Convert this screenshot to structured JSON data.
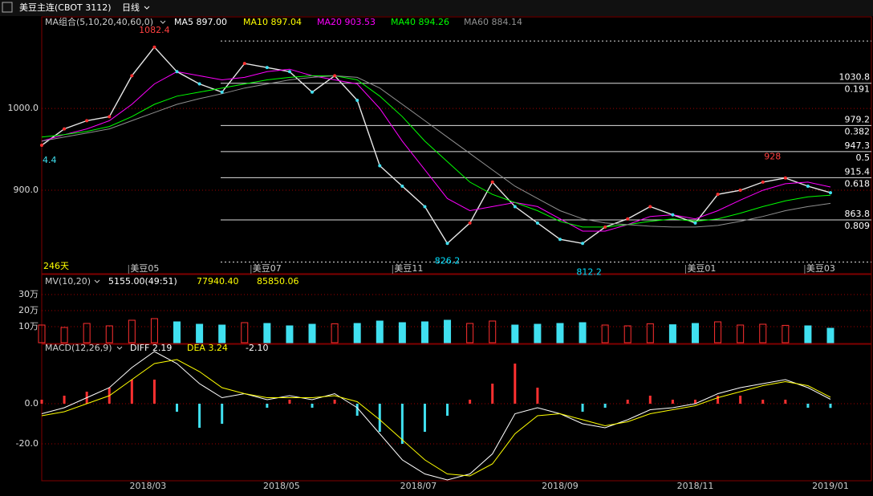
{
  "header": {
    "symbol": "美豆主连(CBOT 3112)",
    "period": "日线"
  },
  "chart_data": [
    {
      "type": "line",
      "legend_title": "MA组合(5,10,20,40,60,0)",
      "legend": [
        {
          "text": "MA5 897.00",
          "color": "#ffffff"
        },
        {
          "text": "MA10 897.04",
          "color": "#ffff00"
        },
        {
          "text": "MA20 903.53",
          "color": "#ff00ff"
        },
        {
          "text": "MA40 894.26",
          "color": "#00ff00"
        },
        {
          "text": "MA60 884.14",
          "color": "#909090"
        }
      ],
      "x": [
        0,
        7,
        14,
        21,
        28,
        35,
        42,
        49,
        56,
        63,
        70,
        77,
        84,
        91,
        98,
        105,
        112,
        119,
        126,
        133,
        140,
        147,
        154,
        161,
        168,
        175,
        182,
        189,
        196,
        203,
        210,
        217,
        224,
        231,
        238,
        245
      ],
      "xlim": [
        0,
        245
      ],
      "ylim": [
        799,
        1111
      ],
      "yticks": [
        {
          "value": 900,
          "label": "900.0"
        },
        {
          "value": 1000,
          "label": "1000.0"
        }
      ],
      "series": [
        {
          "color": "#e8e8e8",
          "values": [
            955,
            975,
            985,
            990,
            1040,
            1075,
            1045,
            1030,
            1020,
            1055,
            1050,
            1045,
            1020,
            1040,
            1010,
            930,
            905,
            880,
            835,
            860,
            910,
            880,
            860,
            840,
            835,
            855,
            865,
            880,
            870,
            860,
            895,
            900,
            910,
            915,
            905,
            897
          ]
        },
        {
          "color": "#ff00ff",
          "values": [
            960,
            968,
            975,
            985,
            1005,
            1030,
            1045,
            1040,
            1035,
            1038,
            1045,
            1048,
            1040,
            1035,
            1030,
            1000,
            960,
            925,
            890,
            875,
            880,
            885,
            880,
            865,
            850,
            850,
            858,
            868,
            870,
            865,
            875,
            888,
            900,
            908,
            910,
            904
          ]
        },
        {
          "color": "#00ff00",
          "values": [
            965,
            968,
            972,
            978,
            990,
            1005,
            1015,
            1020,
            1025,
            1030,
            1035,
            1038,
            1040,
            1040,
            1035,
            1015,
            990,
            960,
            935,
            910,
            895,
            885,
            875,
            862,
            855,
            855,
            858,
            862,
            865,
            862,
            865,
            872,
            880,
            887,
            892,
            894
          ]
        },
        {
          "color": "#909090",
          "values": [
            960,
            965,
            970,
            975,
            985,
            995,
            1005,
            1012,
            1018,
            1025,
            1030,
            1035,
            1038,
            1040,
            1038,
            1025,
            1005,
            985,
            965,
            945,
            925,
            905,
            890,
            875,
            865,
            860,
            858,
            856,
            855,
            855,
            857,
            862,
            868,
            875,
            880,
            884
          ]
        }
      ],
      "fib_levels": [
        {
          "value": 1030.8,
          "ratio": 0.191
        },
        {
          "value": 979.2,
          "ratio": 0.382
        },
        {
          "value": 947.3,
          "ratio": 0.5
        },
        {
          "value": 915.4,
          "ratio": 0.618
        },
        {
          "value": 863.8,
          "ratio": 0.809
        }
      ],
      "range_lines": [
        1082.4,
        812.2
      ],
      "annotations": [
        {
          "value": 1082.4,
          "x": 35,
          "color": "#ff4040"
        },
        {
          "value": 826.2,
          "x": 126,
          "color": "#00e0ff"
        },
        {
          "value": 812.2,
          "x": 170,
          "color": "#00e0ff"
        },
        {
          "value": 928.0,
          "x": 227,
          "color": "#ff4040"
        }
      ],
      "cut_label": "4.4",
      "bar_count_label": "246天",
      "contracts": [
        {
          "label": "美豆05",
          "x": 27
        },
        {
          "label": "美豆07",
          "x": 65
        },
        {
          "label": "美豆11",
          "x": 109
        },
        {
          "label": "美豆01",
          "x": 200
        },
        {
          "label": "美豆03",
          "x": 237
        }
      ]
    },
    {
      "type": "bar",
      "title": "MV(10,20)",
      "stats": [
        {
          "text": "5155.00(49:51)",
          "color": "#ffffff"
        },
        {
          "text": "77940.40",
          "color": "#ffff00"
        },
        {
          "text": "85850.06",
          "color": "#ffff00"
        }
      ],
      "up_color": "#ff3030",
      "down_color": "#40e0f0",
      "values": [
        110000,
        95000,
        120000,
        105000,
        140000,
        150000,
        130000,
        115000,
        110000,
        125000,
        120000,
        105000,
        115000,
        118000,
        120000,
        135000,
        125000,
        130000,
        140000,
        120000,
        135000,
        110000,
        115000,
        120000,
        125000,
        110000,
        105000,
        118000,
        112000,
        120000,
        130000,
        110000,
        115000,
        108000,
        105000,
        90000
      ],
      "ylim": [
        0,
        410000
      ],
      "yticks": [
        {
          "value": 100000,
          "label": "10万"
        },
        {
          "value": 200000,
          "label": "20万"
        },
        {
          "value": 300000,
          "label": "30万"
        }
      ]
    },
    {
      "type": "macd",
      "title": "MACD(12,26,9)",
      "stats": [
        {
          "text": "DIFF 2.19",
          "color": "#ffffff"
        },
        {
          "text": "DEA 3.24",
          "color": "#ffff00"
        },
        {
          "text": "-2.10",
          "color": "#ffffff"
        }
      ],
      "series": [
        {
          "name": "DIFF",
          "color": "#ffffff",
          "values": [
            -5,
            -2,
            3,
            8,
            18,
            26,
            20,
            10,
            3,
            5,
            2,
            4,
            2,
            5,
            -2,
            -15,
            -28,
            -35,
            -38,
            -35,
            -25,
            -5,
            -2,
            -5,
            -10,
            -12,
            -8,
            -3,
            -2,
            0,
            5,
            8,
            10,
            12,
            8,
            2.19
          ]
        },
        {
          "name": "DEA",
          "color": "#ffff00",
          "values": [
            -6,
            -4,
            0,
            4,
            12,
            20,
            22,
            16,
            8,
            5,
            3,
            3,
            3,
            4,
            1,
            -8,
            -18,
            -28,
            -35,
            -36,
            -30,
            -15,
            -6,
            -5,
            -8,
            -11,
            -9,
            -5,
            -3,
            -1,
            3,
            6,
            9,
            11,
            9,
            3.24
          ]
        }
      ],
      "histogram": [
        2,
        4,
        6,
        8,
        12,
        12,
        -4,
        -12,
        -10,
        0,
        -2,
        2,
        -2,
        2,
        -6,
        -14,
        -20,
        -14,
        -6,
        2,
        10,
        20,
        8,
        0,
        -4,
        -2,
        2,
        4,
        2,
        2,
        4,
        4,
        2,
        2,
        -2,
        -2.1
      ],
      "pos_color": "#ff3030",
      "neg_color": "#40e0f0",
      "ylim": [
        -38,
        29.2
      ],
      "yticks": [
        {
          "value": 0,
          "label": "0.0"
        },
        {
          "value": -20,
          "label": "-20.0"
        }
      ],
      "xticks": [
        {
          "value": 33,
          "label": "2018/03"
        },
        {
          "value": 74.5,
          "label": "2018/05"
        },
        {
          "value": 117,
          "label": "2018/07"
        },
        {
          "value": 161,
          "label": "2018/09"
        },
        {
          "value": 203,
          "label": "2018/11"
        },
        {
          "value": 245,
          "label": "2019/01"
        }
      ]
    }
  ]
}
